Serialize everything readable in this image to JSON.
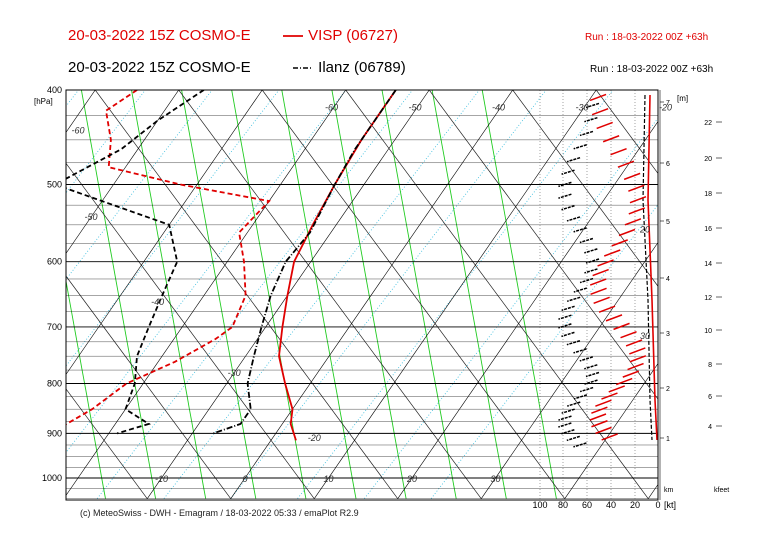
{
  "header": {
    "line1_title": "20-03-2022 15Z COSMO-E",
    "line1_legend": "VISP (06727)",
    "line1_run": "Run : 18-03-2022 00Z +63h",
    "line2_title": "20-03-2022 15Z COSMO-E",
    "line2_legend": "Ilanz (06789)",
    "line2_run": "Run : 18-03-2022 00Z +63h"
  },
  "credit": "(c) MeteoSwiss - DWH - Emagram / 18-03-2022  05:33 / emaPlot R2.9",
  "colors": {
    "visp": "#e00000",
    "ilanz": "#000000",
    "dry_adiabat": "#222222",
    "moist_adiabat": "#22cc22",
    "mixing_ratio": "#33bbdd"
  },
  "chart_data": {
    "type": "emagram",
    "y_axis": {
      "label": "[hPa]",
      "ticks": [
        400,
        500,
        600,
        700,
        800,
        900,
        1000
      ],
      "range": [
        400,
        1050
      ]
    },
    "temperature_ticks": [
      "-10",
      "0",
      "10",
      "20",
      "30"
    ],
    "upper_temp_labels": [
      "-60",
      "-50",
      "-40",
      "-30",
      "-20"
    ],
    "top_temp_labels": [
      "-60",
      "-50",
      "-40",
      "-30",
      "-20"
    ],
    "wind_axis": {
      "ticks": [
        "100",
        "80",
        "60",
        "40",
        "20",
        "0"
      ],
      "unit": "[kt]"
    },
    "km_axis": {
      "label": "[m]",
      "ticks": [
        "1",
        "2",
        "3",
        "4",
        "5",
        "6",
        "7"
      ],
      "footer": "km"
    },
    "kfeet_axis": {
      "ticks": [
        "4",
        "6",
        "8",
        "10",
        "12",
        "14",
        "16",
        "18",
        "20",
        "22"
      ],
      "footer": "kfeet"
    },
    "wind_inner_labels": [
      "20",
      "30"
    ],
    "series": [
      {
        "name": "VISP (06727)",
        "color": "#e00000",
        "style": "solid",
        "role": "temperature",
        "points": [
          [
            -14,
            400
          ],
          [
            -14,
            450
          ],
          [
            -13.5,
            500
          ],
          [
            -12.8,
            550
          ],
          [
            -12,
            600
          ],
          [
            -10,
            650
          ],
          [
            -8,
            700
          ],
          [
            -6,
            750
          ],
          [
            -3,
            800
          ],
          [
            0,
            850
          ],
          [
            1,
            880
          ],
          [
            3,
            915
          ]
        ]
      },
      {
        "name": "VISP (06727)",
        "color": "#e00000",
        "style": "dashed",
        "role": "dewpoint",
        "points": [
          [
            -45,
            400
          ],
          [
            -47,
            420
          ],
          [
            -44,
            450
          ],
          [
            -42,
            480
          ],
          [
            -32,
            500
          ],
          [
            -20,
            520
          ],
          [
            -21,
            560
          ],
          [
            -18,
            600
          ],
          [
            -15,
            650
          ],
          [
            -14,
            700
          ],
          [
            -15,
            720
          ],
          [
            -18,
            760
          ],
          [
            -22,
            800
          ],
          [
            -24,
            850
          ],
          [
            -27,
            900
          ]
        ]
      },
      {
        "name": "Ilanz (06789)",
        "color": "#000000",
        "style": "dashdot",
        "role": "temperature",
        "points": [
          [
            -14,
            400
          ],
          [
            -14,
            460
          ],
          [
            -13.5,
            500
          ],
          [
            -12.5,
            560
          ],
          [
            -13,
            600
          ],
          [
            -12,
            650
          ],
          [
            -10.5,
            700
          ],
          [
            -9,
            750
          ],
          [
            -7.5,
            800
          ],
          [
            -5,
            850
          ],
          [
            -5,
            880
          ],
          [
            -7.5,
            900
          ]
        ]
      },
      {
        "name": "Ilanz (06789)",
        "color": "#000000",
        "style": "dashed",
        "role": "dewpoint",
        "points": [
          [
            -37,
            400
          ],
          [
            -40,
            430
          ],
          [
            -42,
            460
          ],
          [
            -47,
            500
          ],
          [
            -40,
            520
          ],
          [
            -30,
            550
          ],
          [
            -26,
            600
          ],
          [
            -25,
            650
          ],
          [
            -24,
            700
          ],
          [
            -23,
            750
          ],
          [
            -21,
            800
          ],
          [
            -20,
            850
          ],
          [
            -16,
            880
          ],
          [
            -19,
            900
          ]
        ]
      }
    ]
  }
}
